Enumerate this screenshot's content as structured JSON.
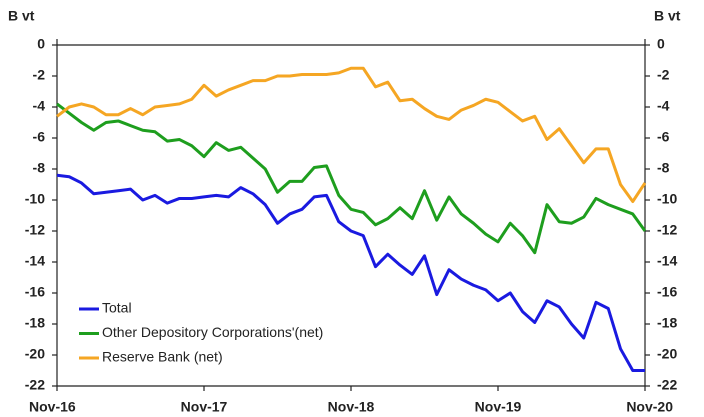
{
  "chart_data": {
    "type": "line",
    "y_label": "B vt",
    "y2_label": "B vt",
    "categories": [
      "Nov-16",
      null,
      null,
      null,
      null,
      null,
      null,
      null,
      null,
      null,
      null,
      null,
      "Nov-17",
      null,
      null,
      null,
      null,
      null,
      null,
      null,
      null,
      null,
      null,
      null,
      "Nov-18",
      null,
      null,
      null,
      null,
      null,
      null,
      null,
      null,
      null,
      null,
      null,
      "Nov-19",
      null,
      null,
      null,
      null,
      null,
      null,
      null,
      null,
      null,
      null,
      null,
      "Nov-20"
    ],
    "series": [
      {
        "name": "Total",
        "color": "#1a1ae0",
        "values": [
          -8.4,
          -8.5,
          -8.9,
          -9.6,
          -9.5,
          -9.4,
          -9.3,
          -10.0,
          -9.7,
          -10.2,
          -9.9,
          -9.9,
          -9.8,
          -9.7,
          -9.8,
          -9.2,
          -9.6,
          -10.3,
          -11.5,
          -10.9,
          -10.6,
          -9.8,
          -9.7,
          -11.4,
          -12.0,
          -12.3,
          -14.3,
          -13.5,
          -14.2,
          -14.8,
          -13.6,
          -16.1,
          -14.5,
          -15.1,
          -15.5,
          -15.8,
          -16.5,
          -16.0,
          -17.2,
          -17.9,
          -16.5,
          -16.9,
          -18.0,
          -18.9,
          -16.6,
          -17.0,
          -19.6,
          -21.0,
          -21.0
        ]
      },
      {
        "name": "Other Depository Corporations'(net)",
        "color": "#1e9e1e",
        "values": [
          -3.8,
          -4.4,
          -5.0,
          -5.5,
          -5.0,
          -4.9,
          -5.2,
          -5.5,
          -5.6,
          -6.2,
          -6.1,
          -6.5,
          -7.2,
          -6.3,
          -6.8,
          -6.6,
          -7.3,
          -8.0,
          -9.5,
          -8.8,
          -8.8,
          -7.9,
          -7.8,
          -9.7,
          -10.6,
          -10.8,
          -11.6,
          -11.2,
          -10.5,
          -11.2,
          -9.4,
          -11.3,
          -9.8,
          -10.9,
          -11.5,
          -12.2,
          -12.7,
          -11.5,
          -12.3,
          -13.4,
          -10.3,
          -11.4,
          -11.5,
          -11.1,
          -9.9,
          -10.3,
          -10.6,
          -10.9,
          -12.0
        ]
      },
      {
        "name": "Reserve Bank (net)",
        "color": "#f5a623",
        "values": [
          -4.6,
          -4.0,
          -3.8,
          -4.0,
          -4.5,
          -4.5,
          -4.1,
          -4.5,
          -4.0,
          -3.9,
          -3.8,
          -3.5,
          -2.6,
          -3.3,
          -2.9,
          -2.6,
          -2.3,
          -2.3,
          -2.0,
          -2.0,
          -1.9,
          -1.9,
          -1.9,
          -1.8,
          -1.5,
          -1.5,
          -2.7,
          -2.4,
          -3.6,
          -3.5,
          -4.1,
          -4.6,
          -4.8,
          -4.2,
          -3.9,
          -3.5,
          -3.7,
          -4.3,
          -4.9,
          -4.6,
          -6.1,
          -5.4,
          -6.5,
          -7.6,
          -6.7,
          -6.7,
          -9.0,
          -10.1,
          -8.9
        ]
      }
    ],
    "ylim": [
      -22,
      0
    ],
    "yticks": [
      0,
      -2,
      -4,
      -6,
      -8,
      -10,
      -12,
      -14,
      -16,
      -18,
      -20,
      -22
    ],
    "y2lim": [
      -22,
      0
    ],
    "y2ticks": [
      0,
      -2,
      -4,
      -6,
      -8,
      -10,
      -12,
      -14,
      -16,
      -18,
      -20,
      -22
    ],
    "legend": "lower left",
    "grid": false
  }
}
